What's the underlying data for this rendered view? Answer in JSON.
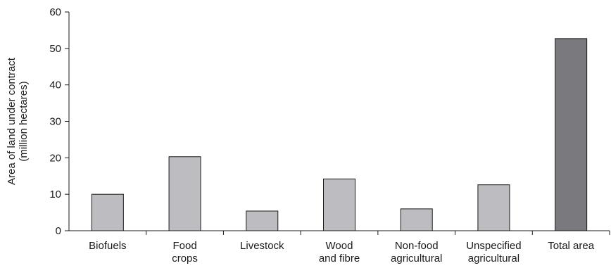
{
  "chart_data": {
    "type": "bar",
    "title": "",
    "xlabel": "",
    "ylabel_lines": [
      "Area of land under contract",
      "(million hectares)"
    ],
    "ylim": [
      0,
      60
    ],
    "yticks": [
      0,
      10,
      20,
      30,
      40,
      50,
      60
    ],
    "grid": false,
    "categories": [
      [
        "Biofuels"
      ],
      [
        "Food",
        "crops"
      ],
      [
        "Livestock"
      ],
      [
        "Wood",
        "and fibre"
      ],
      [
        "Non-food",
        "agricultural"
      ],
      [
        "Unspecified",
        "agricultural"
      ],
      [
        "Total area"
      ]
    ],
    "values": [
      10,
      20.3,
      5.4,
      14.2,
      6,
      12.6,
      52.7
    ],
    "colors": {
      "bar": "#bdbdc1",
      "highlight_bar": "#79797e",
      "bar_stroke": "#1a1a1a",
      "axis": "#1a1a1a"
    },
    "highlight_index": 6
  }
}
